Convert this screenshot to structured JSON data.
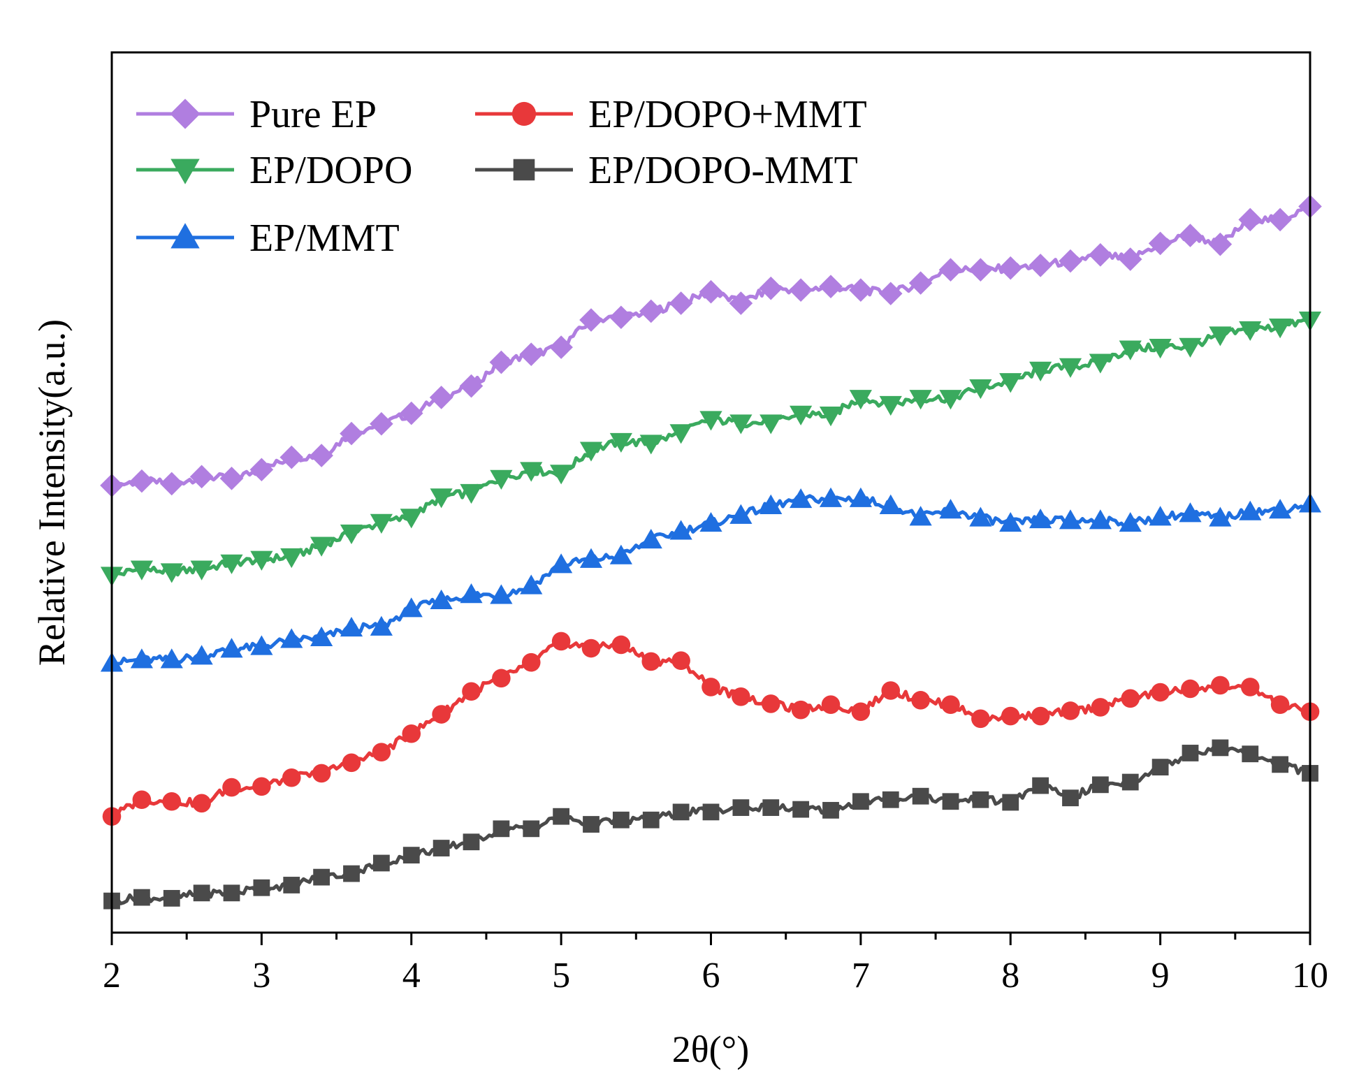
{
  "chart_data": {
    "type": "line",
    "xlabel": "2θ(°)",
    "ylabel": "Relative Intensity(a.u.)",
    "xlim": [
      2,
      10
    ],
    "ylim": [
      0,
      100
    ],
    "x_ticks": [
      "2",
      "3",
      "4",
      "5",
      "6",
      "7",
      "8",
      "9",
      "10"
    ],
    "y_ticks_shown": false,
    "legend_position": "top-left",
    "x": [
      2.0,
      2.2,
      2.4,
      2.6,
      2.8,
      3.0,
      3.2,
      3.4,
      3.6,
      3.8,
      4.0,
      4.2,
      4.4,
      4.6,
      4.8,
      5.0,
      5.2,
      5.4,
      5.6,
      5.8,
      6.0,
      6.2,
      6.4,
      6.6,
      6.8,
      7.0,
      7.2,
      7.4,
      7.6,
      7.8,
      8.0,
      8.2,
      8.4,
      8.6,
      8.8,
      9.0,
      9.2,
      9.4,
      9.6,
      9.8,
      10.0
    ],
    "series": [
      {
        "name": "Pure EP",
        "color": "#b07ee0",
        "marker": "diamond",
        "values": [
          50.8,
          51.3,
          51.0,
          51.8,
          51.6,
          52.6,
          54.0,
          54.2,
          56.7,
          57.8,
          59.0,
          60.8,
          62.1,
          64.8,
          65.7,
          66.5,
          69.6,
          69.9,
          70.6,
          71.5,
          72.8,
          71.5,
          73.2,
          73.0,
          73.4,
          73.0,
          72.6,
          73.8,
          75.3,
          75.3,
          75.5,
          75.8,
          76.3,
          77.0,
          76.5,
          78.3,
          79.2,
          78.2,
          81.0,
          81.0,
          82.5
        ]
      },
      {
        "name": "EP/DOPO",
        "color": "#3aaa5e",
        "marker": "triangle-down",
        "values": [
          40.6,
          41.3,
          41.0,
          41.3,
          42.0,
          42.4,
          42.7,
          44.0,
          45.4,
          46.6,
          47.2,
          49.5,
          50.0,
          51.6,
          52.5,
          52.2,
          54.8,
          55.8,
          55.6,
          56.8,
          58.3,
          57.9,
          57.9,
          58.9,
          58.8,
          60.7,
          60.0,
          60.7,
          60.7,
          61.9,
          62.6,
          63.9,
          64.3,
          64.8,
          66.3,
          66.5,
          66.6,
          67.9,
          68.5,
          68.8,
          69.6
        ]
      },
      {
        "name": "EP/MMT",
        "color": "#1f6fe0",
        "marker": "triangle-up",
        "values": [
          30.6,
          31.0,
          31.0,
          31.4,
          32.2,
          32.5,
          33.3,
          33.5,
          34.6,
          34.7,
          36.8,
          37.7,
          38.4,
          38.3,
          39.4,
          41.8,
          42.4,
          42.8,
          44.6,
          45.6,
          46.5,
          47.4,
          48.5,
          49.2,
          49.3,
          49.3,
          48.5,
          47.2,
          48.0,
          47.1,
          46.5,
          46.9,
          46.8,
          46.8,
          46.5,
          47.2,
          47.6,
          47.1,
          47.8,
          48.0,
          48.7
        ]
      },
      {
        "name": "EP/DOPO+MMT",
        "color": "#e8383a",
        "marker": "circle",
        "values": [
          13.2,
          15.1,
          14.9,
          14.7,
          16.5,
          16.6,
          17.6,
          18.1,
          19.3,
          20.5,
          22.6,
          24.8,
          27.4,
          28.9,
          30.7,
          33.1,
          32.3,
          32.7,
          30.8,
          30.9,
          27.9,
          26.8,
          26.0,
          25.3,
          25.9,
          25.1,
          27.5,
          26.4,
          25.9,
          24.3,
          24.6,
          24.6,
          25.2,
          25.6,
          26.6,
          27.3,
          27.7,
          28.1,
          27.9,
          25.9,
          25.1
        ]
      },
      {
        "name": "EP/DOPO-MMT",
        "color": "#4a4a4a",
        "marker": "square",
        "values": [
          3.6,
          4.0,
          3.9,
          4.5,
          4.5,
          5.1,
          5.4,
          6.3,
          6.7,
          7.9,
          8.8,
          9.6,
          10.3,
          11.8,
          11.8,
          13.2,
          12.3,
          12.8,
          12.8,
          13.7,
          13.7,
          14.2,
          14.2,
          14.0,
          13.9,
          14.9,
          15.1,
          15.5,
          14.9,
          15.1,
          14.8,
          16.7,
          15.3,
          16.8,
          17.1,
          18.8,
          20.4,
          21.0,
          20.3,
          19.1,
          18.1
        ]
      }
    ]
  },
  "legend": [
    {
      "label": "Pure EP",
      "color": "#b07ee0",
      "marker": "diamond"
    },
    {
      "label": "EP/DOPO+MMT",
      "color": "#e8383a",
      "marker": "circle"
    },
    {
      "label": "EP/DOPO",
      "color": "#3aaa5e",
      "marker": "triangle-down"
    },
    {
      "label": "EP/DOPO-MMT",
      "color": "#4a4a4a",
      "marker": "square"
    },
    {
      "label": "EP/MMT",
      "color": "#1f6fe0",
      "marker": "triangle-up"
    }
  ]
}
